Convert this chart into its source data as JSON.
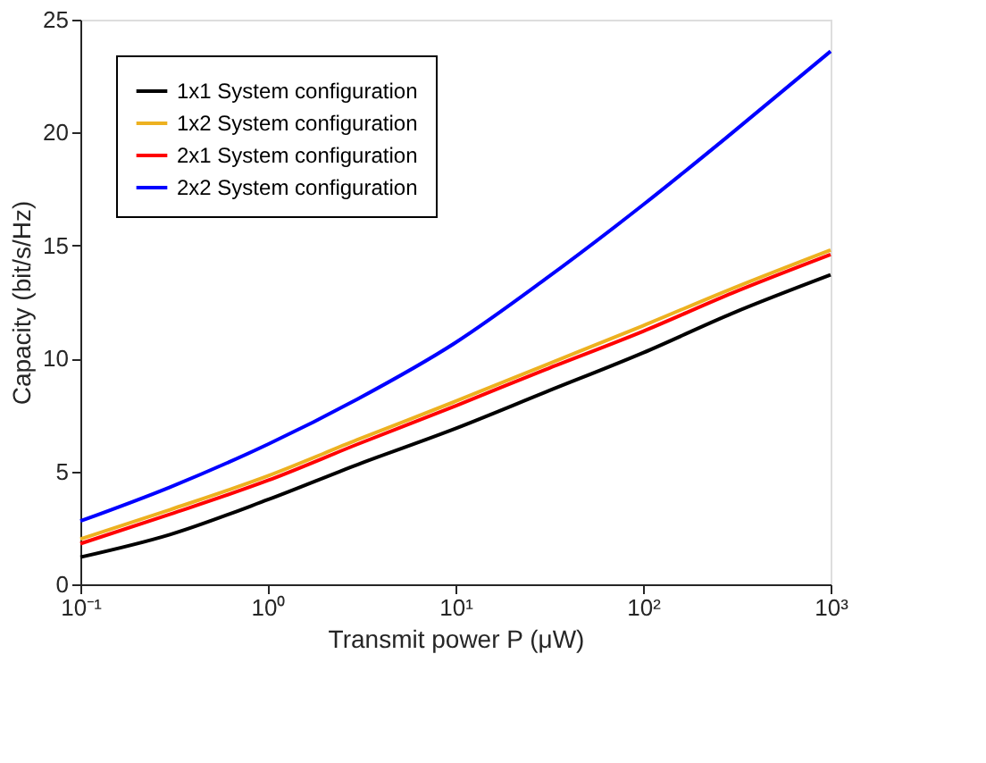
{
  "chart_data": {
    "type": "line",
    "xlabel": "Transmit power P (μW)",
    "ylabel": "Capacity (bit/s/Hz)",
    "x": [
      0.1,
      0.3,
      1,
      3,
      10,
      30,
      100,
      300,
      1000
    ],
    "series": [
      {
        "name": "1x1 System configuration",
        "color": "#000000",
        "values": [
          1.2,
          2.2,
          3.75,
          5.3,
          6.9,
          8.5,
          10.25,
          12.0,
          13.7
        ]
      },
      {
        "name": "1x2 System configuration",
        "color": "#edb120",
        "values": [
          2.0,
          3.3,
          4.8,
          6.4,
          8.1,
          9.7,
          11.45,
          13.1,
          14.8
        ]
      },
      {
        "name": "2x1 System configuration",
        "color": "#ff0000",
        "values": [
          1.8,
          3.1,
          4.6,
          6.2,
          7.9,
          9.5,
          11.2,
          12.9,
          14.6
        ]
      },
      {
        "name": "2x2 System configuration",
        "color": "#0000ff",
        "values": [
          2.8,
          4.3,
          6.2,
          8.2,
          10.7,
          13.5,
          16.8,
          20.0,
          23.6
        ]
      }
    ],
    "xlim": [
      0.1,
      1000
    ],
    "ylim": [
      0,
      25
    ],
    "xticks": [
      {
        "value": 0.1,
        "label": "10⁻¹"
      },
      {
        "value": 1,
        "label": "10⁰"
      },
      {
        "value": 10,
        "label": "10¹"
      },
      {
        "value": 100,
        "label": "10²"
      },
      {
        "value": 1000,
        "label": "10³"
      }
    ],
    "yticks": [
      0,
      5,
      10,
      15,
      20,
      25
    ],
    "log": "x",
    "grid": false,
    "legend": "top left",
    "marker": "none",
    "line_style": "solid"
  }
}
